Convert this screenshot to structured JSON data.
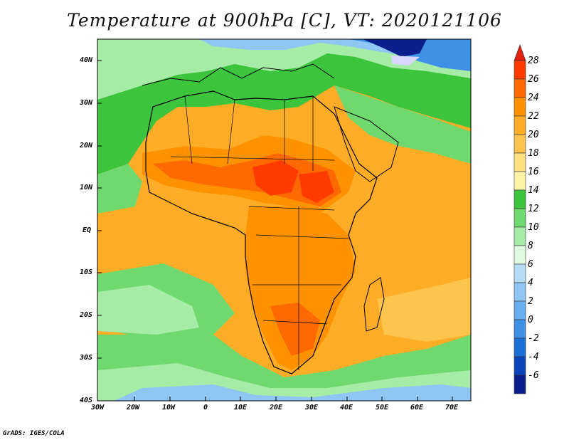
{
  "title": "Temperature at 900hPa [C], VT: 2020121106",
  "credit": "GrADS: IGES/COLA",
  "axes": {
    "lat_labels": [
      "40N",
      "30N",
      "20N",
      "10N",
      "EQ",
      "10S",
      "20S",
      "30S",
      "40S"
    ],
    "lon_labels": [
      "30W",
      "20W",
      "10W",
      "0",
      "10E",
      "20E",
      "30E",
      "40E",
      "50E",
      "60E",
      "70E"
    ]
  },
  "colorbar": {
    "labels": [
      "28",
      "26",
      "24",
      "22",
      "20",
      "18",
      "16",
      "14",
      "12",
      "10",
      "8",
      "6",
      "4",
      "2",
      "0",
      "-2",
      "-4",
      "-6"
    ],
    "colors": [
      "#ff3b00",
      "#ff6a00",
      "#ff9200",
      "#ffad27",
      "#ffc44e",
      "#ffe07e",
      "#fff4a8",
      "#3cc43c",
      "#6fd86f",
      "#a6eba6",
      "#e0fae0",
      "#b4dcf6",
      "#8fc6f3",
      "#68aeef",
      "#3f91e6",
      "#1d6fd8",
      "#0a44b9",
      "#0a1f8c"
    ],
    "top_color": "#e02010",
    "bottom_color": "#d8d8ff"
  },
  "legend_colors": {
    "very_hot": "#ff3b00",
    "hot": "#ff9200",
    "warm": "#ffc44e",
    "mild": "#6fd86f",
    "cool": "#a6eba6",
    "cold": "#8fc6f3",
    "very_cold": "#0a44b9"
  }
}
